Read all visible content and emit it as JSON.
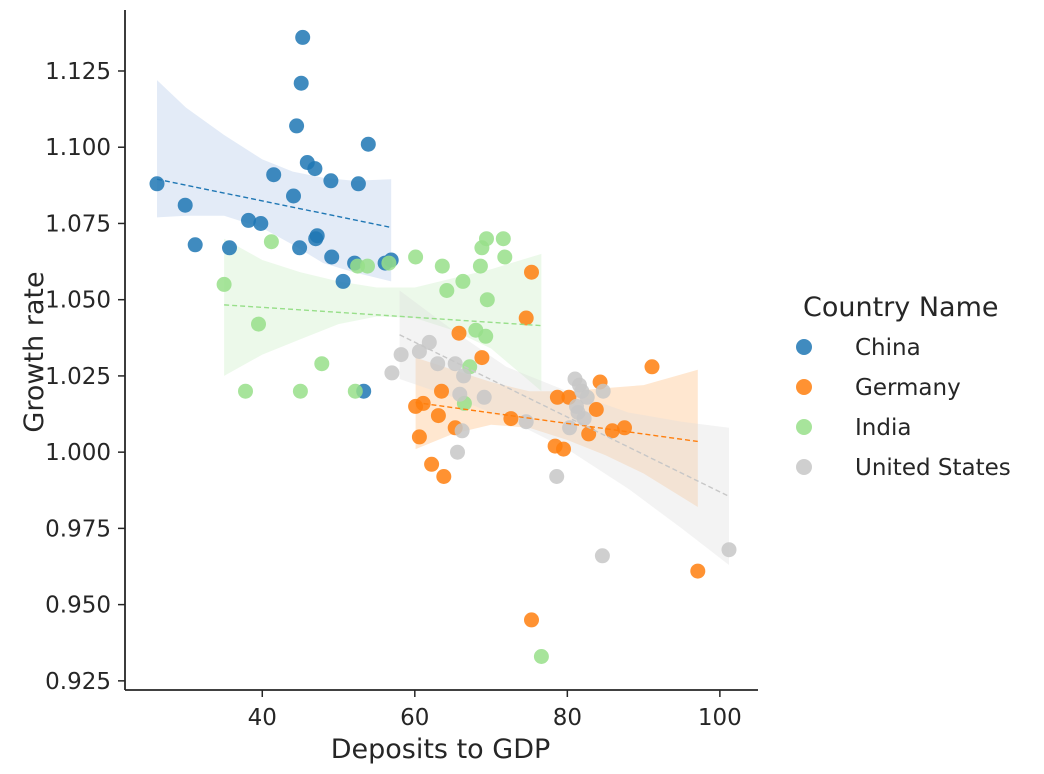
{
  "chart_data": {
    "type": "scatter",
    "xlabel": "Deposits to GDP",
    "ylabel": "Growth rate",
    "xlim": [
      22,
      105
    ],
    "ylim": [
      0.922,
      1.145
    ],
    "xticks": [
      40,
      60,
      80,
      100
    ],
    "yticks": [
      0.925,
      0.95,
      0.975,
      1.0,
      1.025,
      1.05,
      1.075,
      1.1,
      1.125
    ],
    "ytick_labels": [
      "0.925",
      "0.950",
      "0.975",
      "1.000",
      "1.025",
      "1.050",
      "1.075",
      "1.100",
      "1.125"
    ],
    "grid": false,
    "legend_title": "Country Name",
    "legend_position": "right",
    "series": [
      {
        "name": "China",
        "color": "#1f77b4",
        "fill": "#aec7e8",
        "fit": {
          "x": [
            26.2,
            56.9
          ],
          "y": [
            1.0895,
            1.0737
          ]
        },
        "band": {
          "x": [
            26.2,
            30.0,
            35.0,
            40.0,
            44.0,
            48.0,
            52.0,
            56.9
          ],
          "lower": [
            1.077,
            1.0775,
            1.0775,
            1.0735,
            1.068,
            1.062,
            1.059,
            1.056
          ],
          "upper": [
            1.122,
            1.113,
            1.104,
            1.096,
            1.092,
            1.09,
            1.089,
            1.0895
          ]
        },
        "points": [
          [
            26.2,
            1.088
          ],
          [
            29.9,
            1.081
          ],
          [
            31.2,
            1.068
          ],
          [
            35.7,
            1.067
          ],
          [
            38.2,
            1.076
          ],
          [
            39.8,
            1.075
          ],
          [
            41.5,
            1.091
          ],
          [
            44.1,
            1.084
          ],
          [
            44.5,
            1.107
          ],
          [
            44.9,
            1.067
          ],
          [
            45.1,
            1.121
          ],
          [
            45.3,
            1.136
          ],
          [
            45.9,
            1.095
          ],
          [
            46.9,
            1.093
          ],
          [
            47.0,
            1.07
          ],
          [
            47.2,
            1.071
          ],
          [
            49.0,
            1.089
          ],
          [
            49.1,
            1.064
          ],
          [
            50.6,
            1.056
          ],
          [
            52.1,
            1.062
          ],
          [
            52.6,
            1.088
          ],
          [
            53.3,
            1.02
          ],
          [
            53.9,
            1.101
          ],
          [
            56.1,
            1.062
          ],
          [
            56.9,
            1.063
          ]
        ]
      },
      {
        "name": "Germany",
        "color": "#ff7f0e",
        "fill": "#ffbb78",
        "fit": {
          "x": [
            60.1,
            97.1
          ],
          "y": [
            1.0163,
            1.0035
          ]
        },
        "band": {
          "x": [
            60.1,
            65.0,
            70.0,
            75.0,
            80.0,
            85.0,
            90.0,
            97.1
          ],
          "lower": [
            1.001,
            1.006,
            1.009,
            1.008,
            1.004,
            0.999,
            0.993,
            0.982
          ],
          "upper": [
            1.031,
            1.027,
            1.023,
            1.02,
            1.02,
            1.021,
            1.022,
            1.027
          ]
        },
        "points": [
          [
            60.1,
            1.015
          ],
          [
            60.6,
            1.005
          ],
          [
            61.1,
            1.016
          ],
          [
            62.2,
            0.996
          ],
          [
            63.1,
            1.012
          ],
          [
            63.5,
            1.02
          ],
          [
            63.8,
            0.992
          ],
          [
            65.3,
            1.008
          ],
          [
            65.8,
            1.039
          ],
          [
            68.8,
            1.031
          ],
          [
            72.6,
            1.011
          ],
          [
            74.6,
            1.044
          ],
          [
            75.3,
            1.059
          ],
          [
            75.3,
            0.945
          ],
          [
            78.4,
            1.002
          ],
          [
            78.7,
            1.018
          ],
          [
            79.5,
            1.001
          ],
          [
            80.2,
            1.018
          ],
          [
            82.8,
            1.006
          ],
          [
            83.8,
            1.014
          ],
          [
            84.3,
            1.023
          ],
          [
            85.9,
            1.007
          ],
          [
            87.5,
            1.008
          ],
          [
            91.1,
            1.028
          ],
          [
            97.1,
            0.961
          ]
        ]
      },
      {
        "name": "India",
        "color": "#98df8a",
        "fill": "#98df8a",
        "fit": {
          "x": [
            35.0,
            76.6
          ],
          "y": [
            1.0483,
            1.0415
          ]
        },
        "band": {
          "x": [
            35.0,
            40.0,
            45.0,
            50.0,
            55.0,
            60.0,
            65.0,
            70.0,
            76.6
          ],
          "lower": [
            1.025,
            1.032,
            1.037,
            1.042,
            1.0445,
            1.044,
            1.04,
            1.034,
            1.02
          ],
          "upper": [
            1.07,
            1.063,
            1.059,
            1.056,
            1.054,
            1.054,
            1.057,
            1.06,
            1.065
          ]
        },
        "points": [
          [
            35.0,
            1.055
          ],
          [
            37.8,
            1.02
          ],
          [
            39.5,
            1.042
          ],
          [
            41.2,
            1.069
          ],
          [
            45.0,
            1.02
          ],
          [
            47.8,
            1.029
          ],
          [
            52.2,
            1.02
          ],
          [
            52.5,
            1.061
          ],
          [
            53.8,
            1.061
          ],
          [
            56.6,
            1.062
          ],
          [
            60.1,
            1.064
          ],
          [
            63.6,
            1.061
          ],
          [
            64.2,
            1.053
          ],
          [
            66.3,
            1.056
          ],
          [
            66.5,
            1.016
          ],
          [
            67.2,
            1.028
          ],
          [
            68.0,
            1.04
          ],
          [
            68.6,
            1.061
          ],
          [
            68.8,
            1.067
          ],
          [
            69.3,
            1.038
          ],
          [
            69.4,
            1.07
          ],
          [
            69.5,
            1.05
          ],
          [
            71.6,
            1.07
          ],
          [
            71.8,
            1.064
          ],
          [
            76.6,
            0.933
          ]
        ]
      },
      {
        "name": "United States",
        "color": "#c7c7c7",
        "fill": "#dcdcdc",
        "fit": {
          "x": [
            58.0,
            101.2
          ],
          "y": [
            1.0385,
            0.9855
          ]
        },
        "band": {
          "x": [
            58.0,
            65.0,
            72.0,
            80.0,
            88.0,
            95.0,
            101.2
          ],
          "lower": [
            1.024,
            1.018,
            1.011,
            1.001,
            0.988,
            0.975,
            0.963
          ],
          "upper": [
            1.053,
            1.04,
            1.028,
            1.02,
            1.013,
            1.01,
            1.008
          ]
        },
        "points": [
          [
            57.0,
            1.026
          ],
          [
            58.2,
            1.032
          ],
          [
            60.6,
            1.033
          ],
          [
            61.9,
            1.036
          ],
          [
            63.0,
            1.029
          ],
          [
            65.3,
            1.029
          ],
          [
            65.6,
            1.0
          ],
          [
            65.9,
            1.019
          ],
          [
            66.2,
            1.007
          ],
          [
            66.4,
            1.025
          ],
          [
            69.1,
            1.018
          ],
          [
            74.6,
            1.01
          ],
          [
            78.6,
            0.992
          ],
          [
            80.3,
            1.008
          ],
          [
            81.0,
            1.024
          ],
          [
            81.2,
            1.015
          ],
          [
            81.4,
            1.013
          ],
          [
            81.6,
            1.022
          ],
          [
            81.9,
            1.02
          ],
          [
            82.2,
            1.011
          ],
          [
            82.6,
            1.018
          ],
          [
            84.6,
            0.966
          ],
          [
            84.7,
            1.02
          ],
          [
            101.2,
            0.968
          ]
        ]
      }
    ]
  }
}
